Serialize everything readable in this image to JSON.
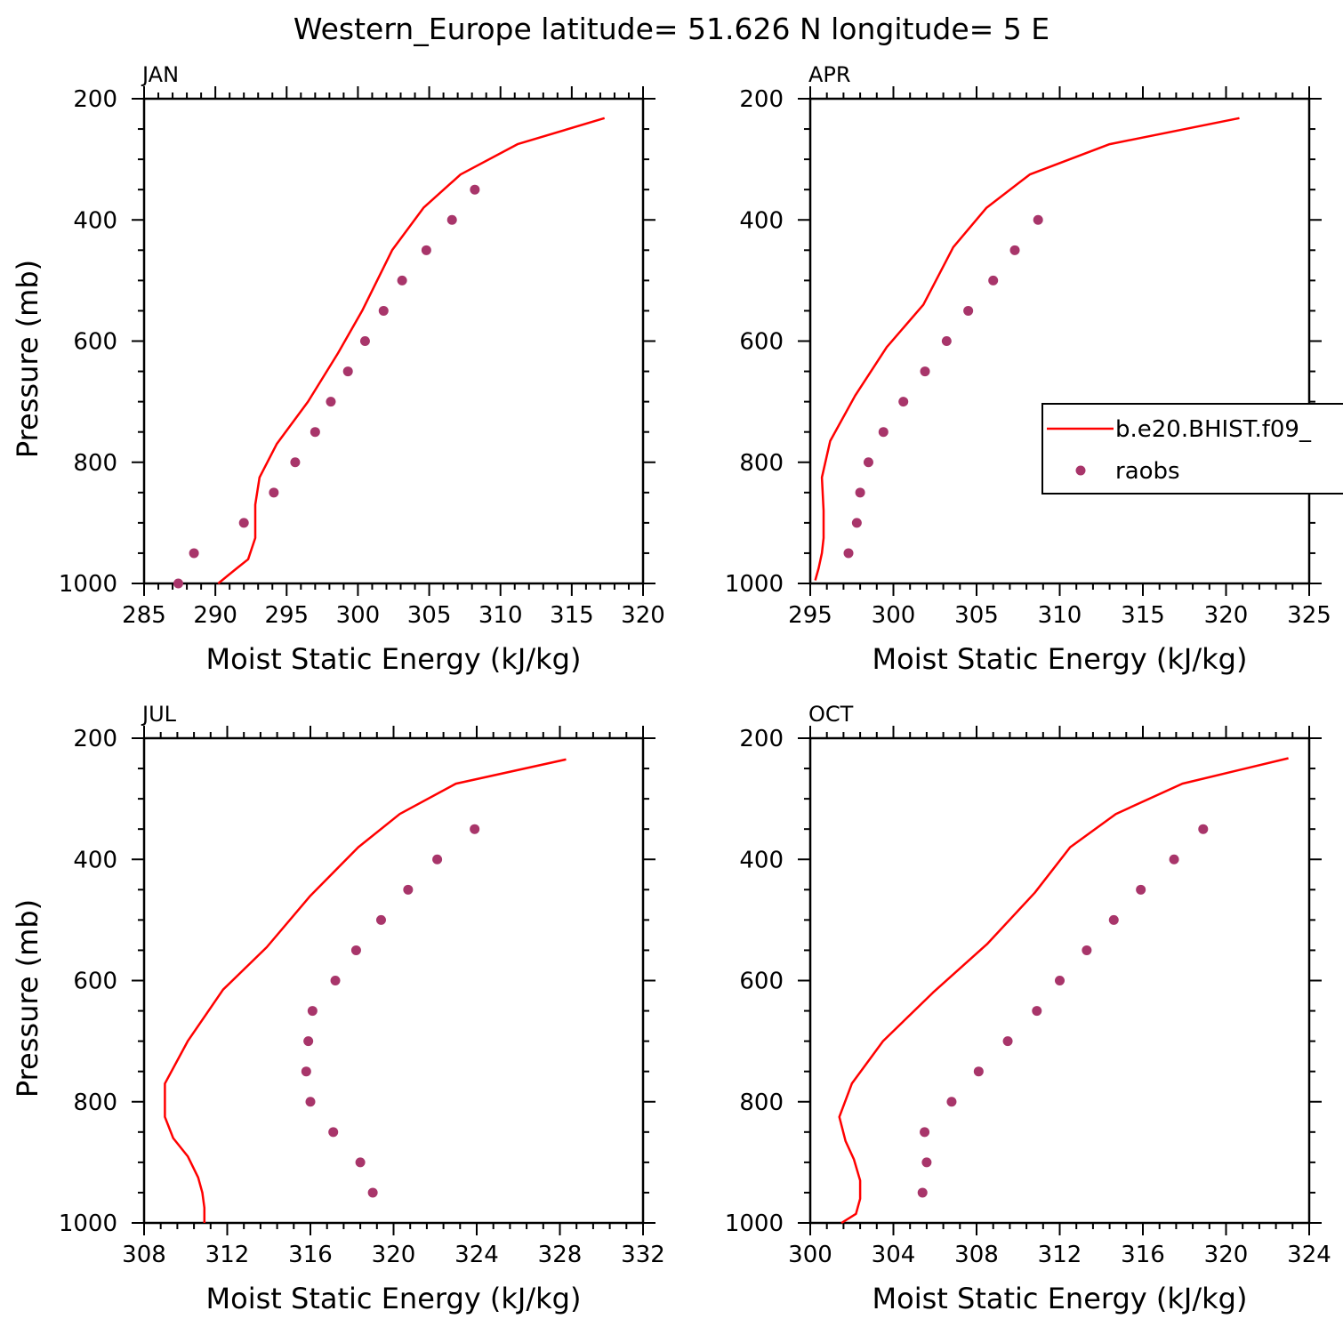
{
  "title": "Western_Europe  latitude= 51.626 N longitude= 5 E",
  "legend": {
    "model_label": "b.e20.BHIST.f09_",
    "obs_label": "raobs",
    "model_color": "#ff0000",
    "obs_color": "#a8356a"
  },
  "chart_data": [
    {
      "type": "line",
      "month": "JAN",
      "xlabel": "Moist Static Energy (kJ/kg)",
      "ylabel": "Pressure (mb)",
      "xlim": [
        285,
        320
      ],
      "ylim": [
        1000,
        200
      ],
      "xticks": [
        285,
        290,
        295,
        300,
        305,
        310,
        315,
        320
      ],
      "yticks": [
        200,
        400,
        600,
        800,
        1000
      ],
      "series": [
        {
          "name": "b.e20.BHIST.f09_",
          "style": "line",
          "x": [
            290.2,
            291.5,
            292.3,
            292.8,
            292.8,
            293.1,
            294.3,
            296.5,
            298.6,
            300.3,
            302.4,
            304.6,
            307.2,
            311.2,
            317.3
          ],
          "y": [
            1000,
            975,
            960,
            925,
            870,
            825,
            770,
            700,
            620,
            550,
            450,
            380,
            325,
            275,
            232
          ]
        },
        {
          "name": "raobs",
          "style": "markers",
          "x": [
            287.4,
            288.5,
            292.0,
            294.1,
            295.6,
            297.0,
            298.1,
            299.3,
            300.5,
            301.8,
            303.1,
            304.8,
            306.6,
            308.2
          ],
          "y": [
            1000,
            950,
            900,
            850,
            800,
            750,
            700,
            650,
            600,
            550,
            500,
            450,
            400,
            350
          ]
        }
      ]
    },
    {
      "type": "line",
      "month": "APR",
      "xlabel": "Moist Static Energy (kJ/kg)",
      "ylabel": "",
      "xlim": [
        295,
        325
      ],
      "ylim": [
        1000,
        200
      ],
      "xticks": [
        295,
        300,
        305,
        310,
        315,
        320,
        325
      ],
      "yticks": [
        200,
        400,
        600,
        800,
        1000
      ],
      "series": [
        {
          "name": "b.e20.BHIST.f09_",
          "style": "line",
          "x": [
            295.3,
            295.5,
            295.7,
            295.8,
            295.8,
            295.7,
            296.2,
            297.7,
            299.6,
            301.8,
            303.6,
            305.6,
            308.2,
            313.0,
            320.8
          ],
          "y": [
            995,
            975,
            950,
            925,
            880,
            825,
            765,
            690,
            610,
            540,
            445,
            380,
            325,
            275,
            232
          ]
        },
        {
          "name": "raobs",
          "style": "markers",
          "x": [
            297.3,
            297.8,
            298.0,
            298.5,
            299.4,
            300.6,
            301.9,
            303.2,
            304.5,
            306.0,
            307.3,
            308.7
          ],
          "y": [
            950,
            900,
            850,
            800,
            750,
            700,
            650,
            600,
            550,
            500,
            450,
            400
          ]
        }
      ]
    },
    {
      "type": "line",
      "month": "JUL",
      "xlabel": "Moist Static Energy (kJ/kg)",
      "ylabel": "Pressure (mb)",
      "xlim": [
        308,
        332
      ],
      "ylim": [
        1000,
        200
      ],
      "xticks": [
        308,
        312,
        316,
        320,
        324,
        328,
        332
      ],
      "yticks": [
        200,
        400,
        600,
        800,
        1000
      ],
      "series": [
        {
          "name": "b.e20.BHIST.f09_",
          "style": "line",
          "x": [
            310.9,
            310.9,
            310.8,
            310.6,
            310.1,
            309.4,
            309.0,
            309.0,
            310.1,
            311.8,
            313.9,
            316.0,
            318.3,
            320.3,
            323.0,
            328.3
          ],
          "y": [
            1000,
            975,
            950,
            925,
            890,
            860,
            825,
            770,
            700,
            615,
            545,
            460,
            380,
            325,
            275,
            235
          ]
        },
        {
          "name": "raobs",
          "style": "markers",
          "x": [
            319.0,
            318.4,
            317.1,
            316.0,
            315.8,
            315.9,
            316.1,
            317.2,
            318.2,
            319.4,
            320.7,
            322.1,
            323.9
          ],
          "y": [
            950,
            900,
            850,
            800,
            750,
            700,
            650,
            600,
            550,
            500,
            450,
            400,
            350
          ]
        }
      ]
    },
    {
      "type": "line",
      "month": "OCT",
      "xlabel": "Moist Static Energy (kJ/kg)",
      "ylabel": "",
      "xlim": [
        300,
        324
      ],
      "ylim": [
        1000,
        200
      ],
      "xticks": [
        300,
        304,
        308,
        312,
        316,
        320,
        324
      ],
      "yticks": [
        200,
        400,
        600,
        800,
        1000
      ],
      "series": [
        {
          "name": "b.e20.BHIST.f09_",
          "style": "line",
          "x": [
            301.5,
            302.2,
            302.4,
            302.4,
            302.1,
            301.7,
            301.4,
            302.0,
            303.5,
            305.9,
            308.5,
            310.8,
            312.5,
            314.7,
            317.9,
            323.0
          ],
          "y": [
            1000,
            985,
            960,
            930,
            895,
            865,
            825,
            770,
            700,
            620,
            540,
            455,
            380,
            325,
            275,
            233
          ]
        },
        {
          "name": "raobs",
          "style": "markers",
          "x": [
            305.4,
            305.6,
            305.5,
            306.8,
            308.1,
            309.5,
            310.9,
            312.0,
            313.3,
            314.6,
            315.9,
            317.5,
            318.9
          ],
          "y": [
            950,
            900,
            850,
            800,
            750,
            700,
            650,
            600,
            550,
            500,
            450,
            400,
            350
          ]
        }
      ]
    }
  ]
}
